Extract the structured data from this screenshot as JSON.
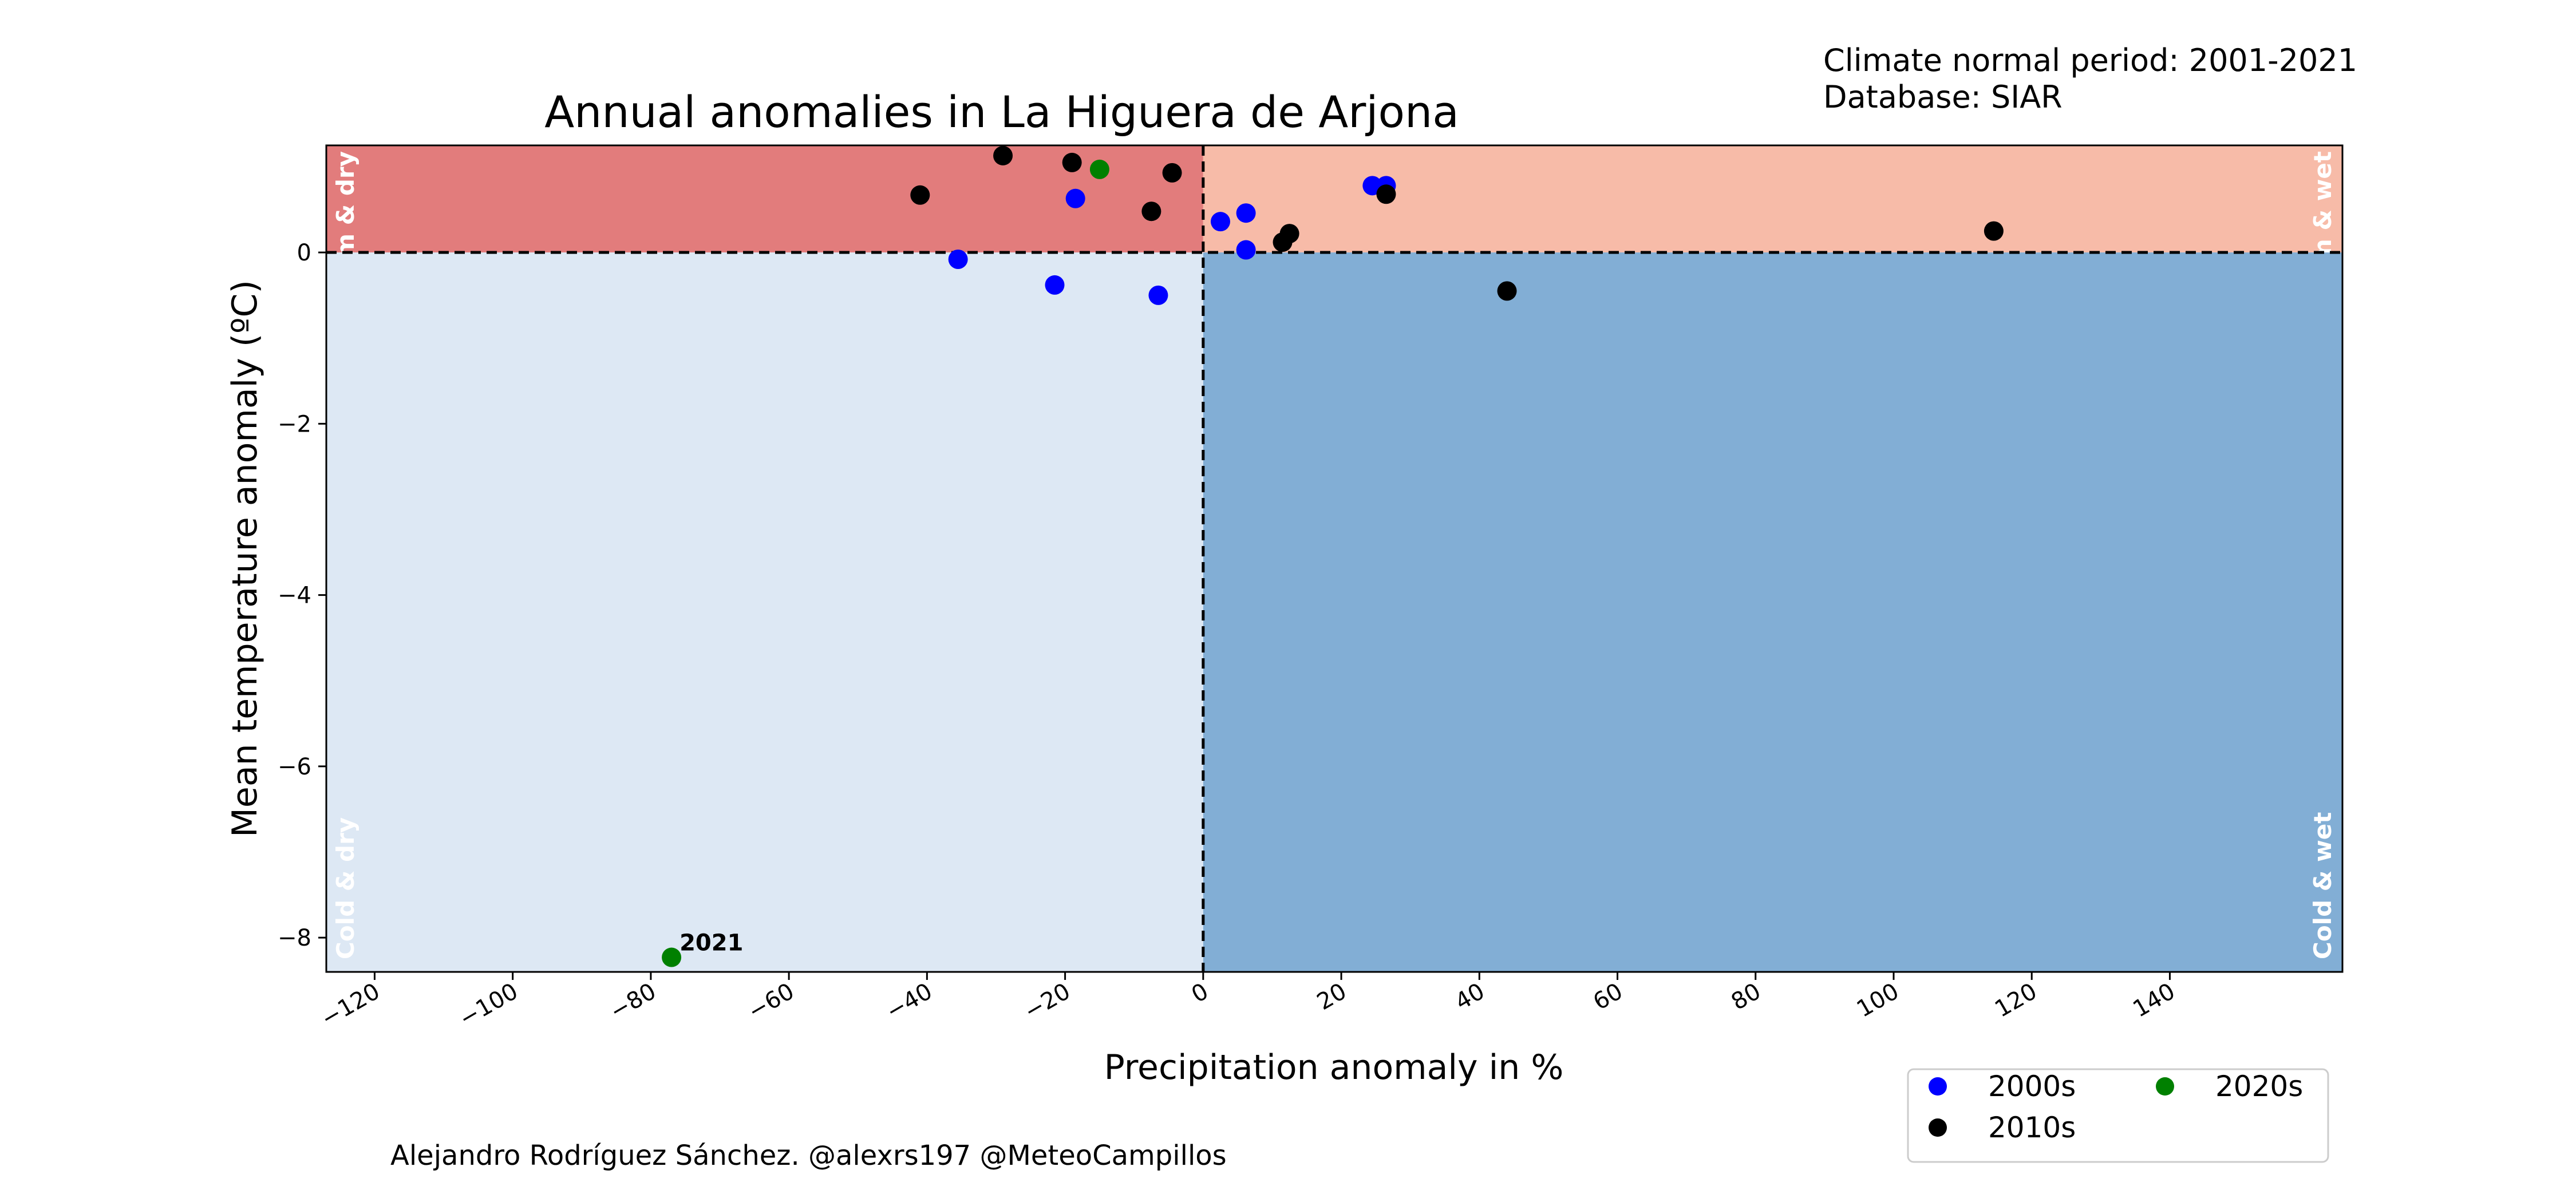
{
  "header": {
    "info_line1": "Climate normal period: 2001-2021",
    "info_line2": "Database: SIAR"
  },
  "footer": {
    "credit": "Alejandro Rodríguez Sánchez. @alexrs197 @MeteoCampillos"
  },
  "chart_data": {
    "type": "scatter",
    "title": "Annual anomalies in La Higuera de Arjona",
    "xlabel": "Precipitation anomaly in %",
    "ylabel": "Mean temperature anomaly (ºC)",
    "xlim": [
      -127,
      165
    ],
    "ylim": [
      -8.4,
      1.25
    ],
    "xticks": [
      -120,
      -100,
      -80,
      -60,
      -40,
      -20,
      0,
      20,
      40,
      60,
      80,
      100,
      120,
      140
    ],
    "yticks": [
      0,
      -2,
      -4,
      -6,
      -8
    ],
    "grid": false,
    "legend_position": "bottom-right, outside plot",
    "quadrants": [
      {
        "label": "Warm & dry",
        "color": "#e27c7c",
        "x_side": "negative",
        "y_side": "positive"
      },
      {
        "label": "Warm & wet",
        "color": "#f7bba8",
        "x_side": "positive",
        "y_side": "positive"
      },
      {
        "label": "Cold & dry",
        "color": "#dde8f4",
        "x_side": "negative",
        "y_side": "negative"
      },
      {
        "label": "Cold & wet",
        "color": "#82aed5",
        "x_side": "positive",
        "y_side": "negative"
      }
    ],
    "series": [
      {
        "name": "2000s",
        "color": "#0000ff",
        "points": [
          {
            "x": -35.5,
            "y": -0.08
          },
          {
            "x": -21.5,
            "y": -0.38
          },
          {
            "x": -18.5,
            "y": 0.63
          },
          {
            "x": -6.5,
            "y": -0.5
          },
          {
            "x": 2.5,
            "y": 0.36
          },
          {
            "x": 6.2,
            "y": 0.46
          },
          {
            "x": 6.2,
            "y": 0.03
          },
          {
            "x": 24.5,
            "y": 0.78
          },
          {
            "x": 26.5,
            "y": 0.78
          }
        ]
      },
      {
        "name": "2010s",
        "color": "#000000",
        "points": [
          {
            "x": -41.0,
            "y": 0.67
          },
          {
            "x": -29.0,
            "y": 1.13
          },
          {
            "x": -19.0,
            "y": 1.05
          },
          {
            "x": -7.5,
            "y": 0.48
          },
          {
            "x": -4.5,
            "y": 0.93
          },
          {
            "x": 11.5,
            "y": 0.12
          },
          {
            "x": 12.5,
            "y": 0.22
          },
          {
            "x": 26.5,
            "y": 0.68
          },
          {
            "x": 44.0,
            "y": -0.45
          },
          {
            "x": 114.5,
            "y": 0.25
          }
        ]
      },
      {
        "name": "2020s",
        "color": "#008000",
        "points": [
          {
            "x": -15.0,
            "y": 0.97
          },
          {
            "x": -77.0,
            "y": -8.23,
            "label": "2021"
          }
        ]
      }
    ]
  }
}
